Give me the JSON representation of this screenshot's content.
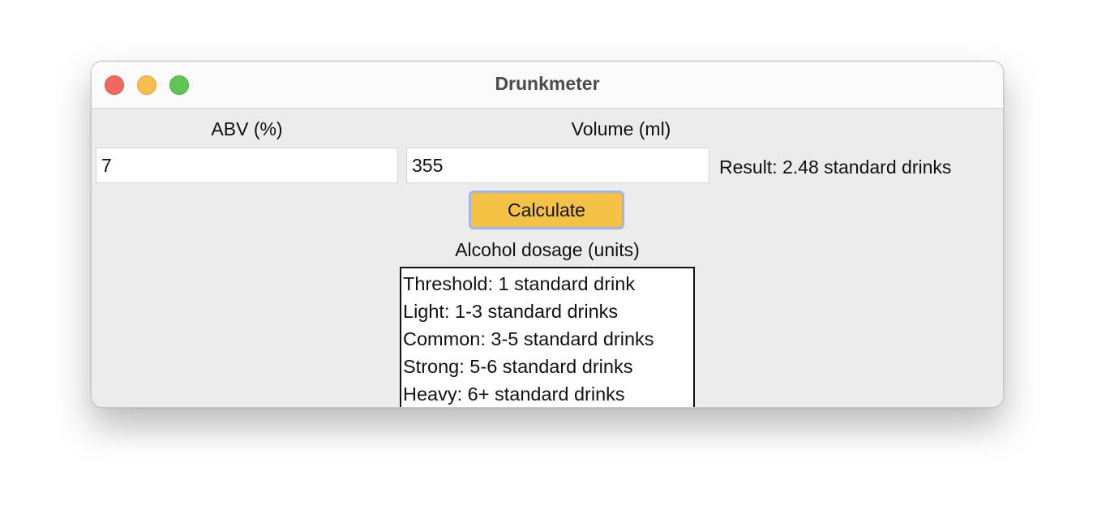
{
  "window": {
    "title": "Drunkmeter"
  },
  "form": {
    "abv_label": "ABV (%)",
    "abv_value": "7",
    "volume_label": "Volume (ml)",
    "volume_value": "355",
    "result_text": "Result: 2.48 standard drinks",
    "calculate_label": "Calculate",
    "calculate_color": "#f4c145"
  },
  "dosage": {
    "heading": "Alcohol dosage (units)",
    "items": [
      "Threshold: 1 standard drink",
      "Light: 1-3 standard drinks",
      "Common: 3-5 standard drinks",
      "Strong: 5-6 standard drinks",
      "Heavy: 6+ standard drinks"
    ]
  },
  "traffic_lights": {
    "close": "close-icon",
    "minimize": "minimize-icon",
    "zoom": "zoom-icon"
  }
}
